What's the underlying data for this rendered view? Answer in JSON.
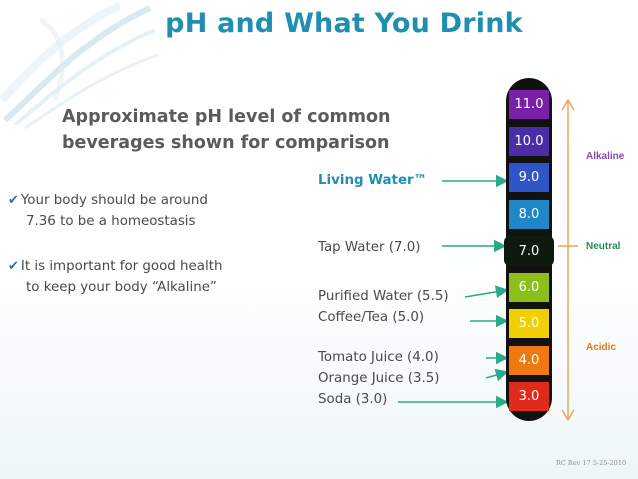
{
  "title": "pH and What You Drink",
  "subtitle_line1": "Approximate pH level of common",
  "subtitle_line2": "beverages shown for comparison",
  "bullets": [
    {
      "line1": "Your body should be around",
      "line2": "7.36 to be a homeostasis"
    },
    {
      "line1": "It is important for good health",
      "line2": "to  keep your body “Alkaline”"
    }
  ],
  "beverages": {
    "living_water": "Living Water™",
    "tap_water": "Tap Water (7.0)",
    "purified_water": "Purified Water (5.5)",
    "coffee_tea": "Coffee/Tea (5.0)",
    "tomato_juice": "Tomato Juice (4.0)",
    "orange_juice": "Orange Juice (3.5)",
    "soda": "Soda (3.0)"
  },
  "scale": [
    {
      "label": "11.0",
      "color": "#7a1fa8"
    },
    {
      "label": "10.0",
      "color": "#4a2ea8"
    },
    {
      "label": "9.0",
      "color": "#2f55c8"
    },
    {
      "label": "8.0",
      "color": "#1f86c8"
    },
    {
      "label": "7.0",
      "color": "#0f1a0f"
    },
    {
      "label": "6.0",
      "color": "#8cbf1a"
    },
    {
      "label": "5.0",
      "color": "#f0d000"
    },
    {
      "label": "4.0",
      "color": "#f07810"
    },
    {
      "label": "3.0",
      "color": "#e22a1a"
    }
  ],
  "side_labels": {
    "alkaline": "Alkaline",
    "neutral": "Neutral",
    "acidic": "Acidic"
  },
  "colors": {
    "title": "#1f8fb0",
    "arrow": "#2aaa8a",
    "alkaline": "#8a4aa6",
    "neutral": "#2a8a5a",
    "acidic": "#e07a1a",
    "range_arrow": "#f0a050"
  },
  "footer": "RC Rev 17 5-25-2010"
}
